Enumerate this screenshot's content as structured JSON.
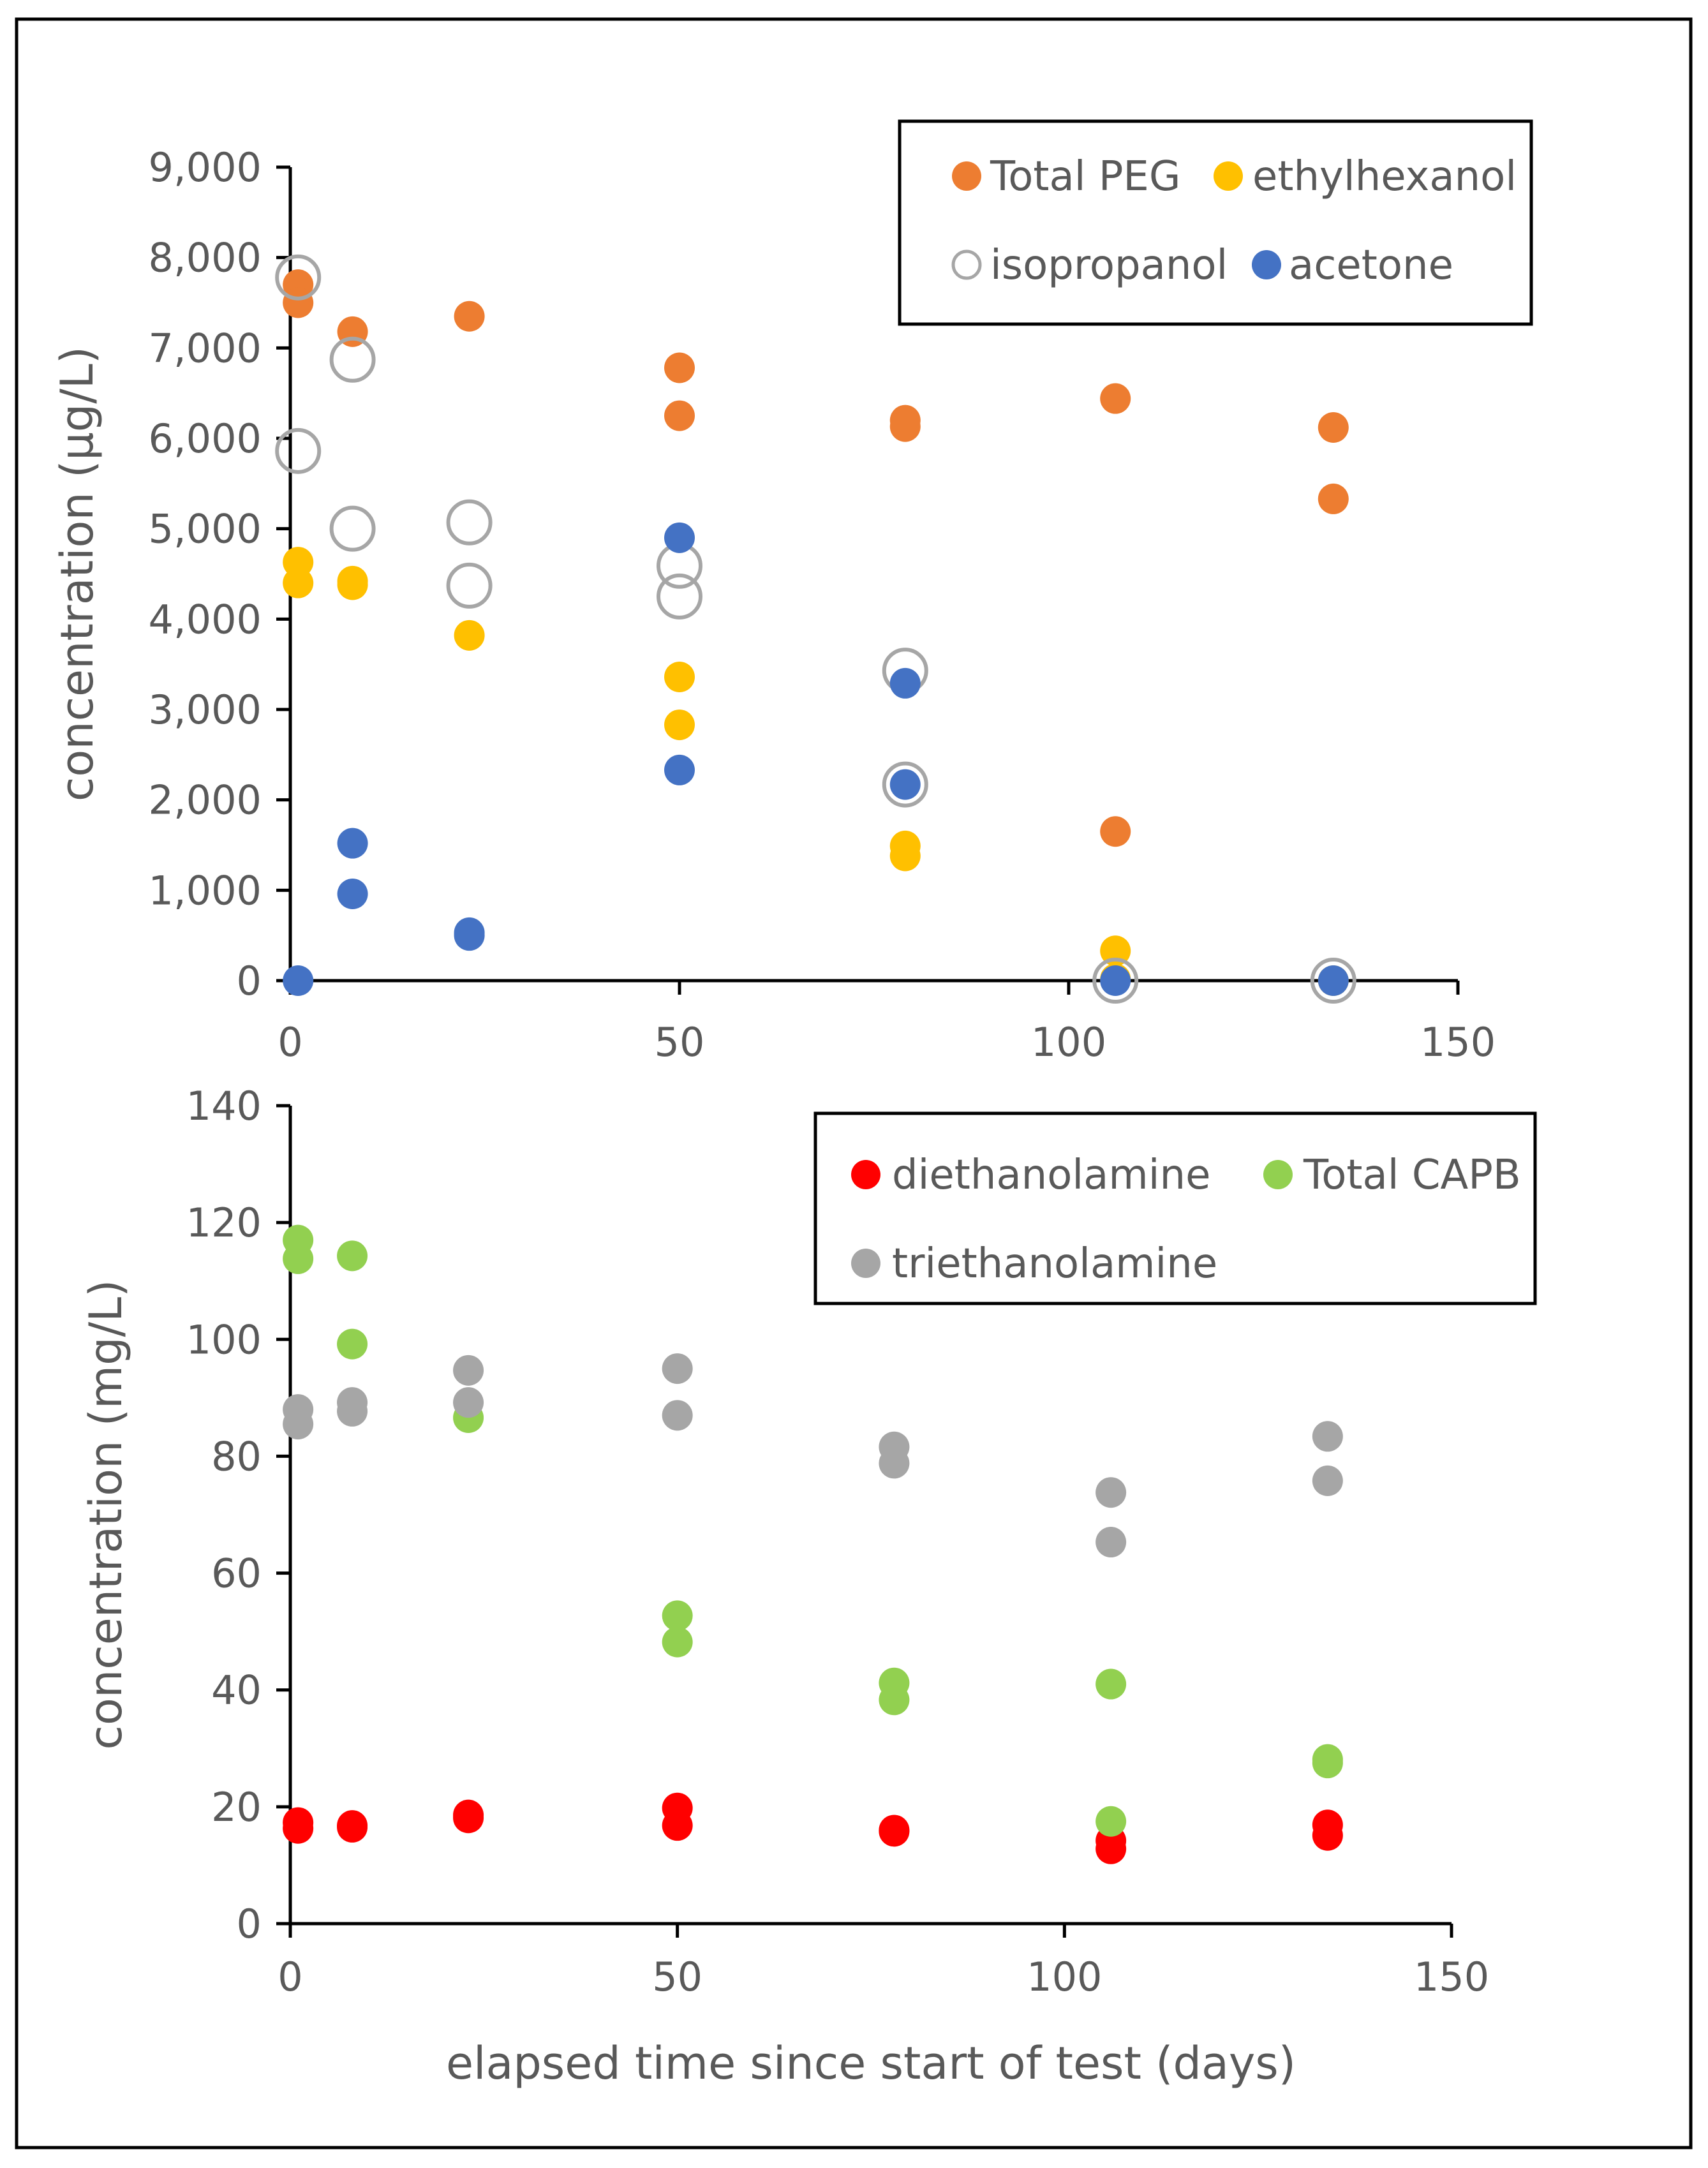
{
  "chart_data": [
    {
      "type": "scatter",
      "title": "",
      "xlabel": "",
      "ylabel": "concentration (µg/L)",
      "xlim": [
        0,
        150
      ],
      "ylim": [
        0,
        9000
      ],
      "xticks": [
        "0",
        "50",
        "100",
        "150"
      ],
      "yticks": [
        "0",
        "1,000",
        "2,000",
        "3,000",
        "4,000",
        "5,000",
        "6,000",
        "7,000",
        "8,000",
        "9,000"
      ],
      "grid": false,
      "legend_position": "top-right",
      "series": [
        {
          "name": "Total PEG",
          "color": "#ED7D31",
          "marker": "filled",
          "points": [
            [
              1,
              7700
            ],
            [
              1,
              7500
            ],
            [
              8,
              7180
            ],
            [
              23,
              7350
            ],
            [
              50,
              6780
            ],
            [
              50,
              6250
            ],
            [
              79,
              6200
            ],
            [
              79,
              6130
            ],
            [
              106,
              6440
            ],
            [
              106,
              1650
            ],
            [
              134,
              6120
            ],
            [
              134,
              5330
            ]
          ]
        },
        {
          "name": "ethylhexanol",
          "color": "#FFC000",
          "marker": "filled",
          "points": [
            [
              1,
              4630
            ],
            [
              1,
              4400
            ],
            [
              8,
              4420
            ],
            [
              8,
              4380
            ],
            [
              23,
              3820
            ],
            [
              50,
              3360
            ],
            [
              50,
              2830
            ],
            [
              79,
              1490
            ],
            [
              79,
              1380
            ],
            [
              106,
              330
            ],
            [
              106,
              20
            ],
            [
              134,
              0
            ]
          ]
        },
        {
          "name": "isopropanol",
          "color": "#A6A6A6",
          "marker": "open",
          "points": [
            [
              1,
              7780
            ],
            [
              1,
              5860
            ],
            [
              8,
              6870
            ],
            [
              8,
              5000
            ],
            [
              23,
              5070
            ],
            [
              23,
              4370
            ],
            [
              50,
              4590
            ],
            [
              50,
              4250
            ],
            [
              79,
              3430
            ],
            [
              79,
              2170
            ],
            [
              106,
              0
            ],
            [
              134,
              0
            ]
          ]
        },
        {
          "name": "acetone",
          "color": "#4472C4",
          "marker": "filled",
          "points": [
            [
              1,
              0
            ],
            [
              8,
              1520
            ],
            [
              8,
              960
            ],
            [
              23,
              530
            ],
            [
              23,
              500
            ],
            [
              50,
              4900
            ],
            [
              50,
              2330
            ],
            [
              79,
              3290
            ],
            [
              79,
              2170
            ],
            [
              106,
              0
            ],
            [
              134,
              0
            ]
          ]
        }
      ]
    },
    {
      "type": "scatter",
      "title": "",
      "xlabel": "elapsed time since start of test (days)",
      "ylabel": "concentration (mg/L)",
      "xlim": [
        0,
        150
      ],
      "ylim": [
        0,
        140
      ],
      "xticks": [
        "0",
        "50",
        "100",
        "150"
      ],
      "yticks": [
        "0",
        "20",
        "40",
        "60",
        "80",
        "100",
        "120",
        "140"
      ],
      "grid": false,
      "legend_position": "top-right",
      "series": [
        {
          "name": "diethanolamine",
          "color": "#FF0000",
          "marker": "filled",
          "points": [
            [
              1,
              17.3
            ],
            [
              1,
              16.3
            ],
            [
              8,
              16.8
            ],
            [
              8,
              16.5
            ],
            [
              23,
              18.6
            ],
            [
              23,
              18.1
            ],
            [
              50,
              19.8
            ],
            [
              50,
              16.8
            ],
            [
              78,
              16.0
            ],
            [
              78,
              15.8
            ],
            [
              106,
              14.2
            ],
            [
              106,
              12.8
            ],
            [
              134,
              16.9
            ],
            [
              134,
              15.1
            ]
          ]
        },
        {
          "name": "Total CAPB",
          "color": "#92D050",
          "marker": "filled",
          "points": [
            [
              1,
              117.0
            ],
            [
              1,
              113.8
            ],
            [
              8,
              114.3
            ],
            [
              8,
              99.2
            ],
            [
              23,
              86.6
            ],
            [
              50,
              52.7
            ],
            [
              50,
              48.2
            ],
            [
              78,
              41.2
            ],
            [
              78,
              38.3
            ],
            [
              106,
              41.0
            ],
            [
              106,
              17.5
            ],
            [
              134,
              28.1
            ],
            [
              134,
              27.5
            ]
          ]
        },
        {
          "name": "triethanolamine",
          "color": "#A6A6A6",
          "marker": "filled",
          "points": [
            [
              1,
              88.0
            ],
            [
              1,
              85.5
            ],
            [
              8,
              89.2
            ],
            [
              8,
              87.7
            ],
            [
              23,
              94.7
            ],
            [
              23,
              89.2
            ],
            [
              50,
              95.0
            ],
            [
              50,
              87.0
            ],
            [
              78,
              81.6
            ],
            [
              78,
              78.8
            ],
            [
              106,
              73.8
            ],
            [
              106,
              65.3
            ],
            [
              134,
              83.4
            ],
            [
              134,
              75.8
            ]
          ]
        }
      ]
    }
  ]
}
